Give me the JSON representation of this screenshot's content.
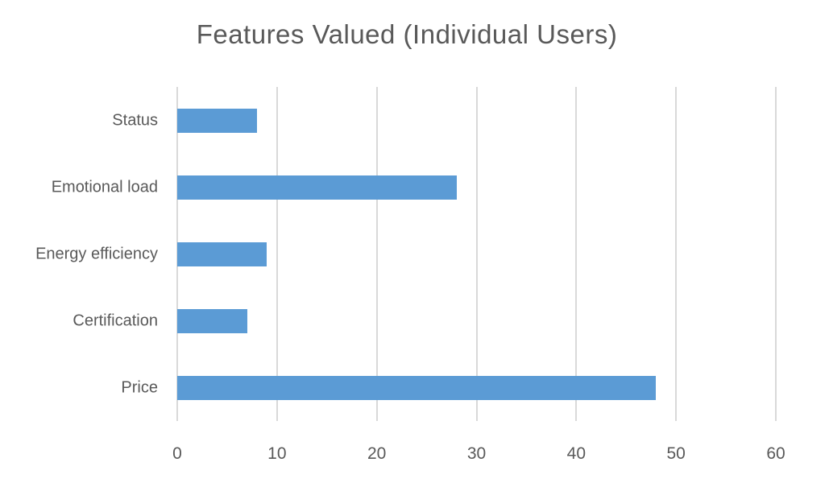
{
  "page": {
    "background": "#FFFFFF"
  },
  "chart_data": {
    "type": "bar",
    "orientation": "horizontal",
    "title": "Features Valued (Individual Users)",
    "categories": [
      "Status",
      "Emotional load",
      "Energy efficiency",
      "Certification",
      "Price"
    ],
    "values": [
      8,
      28,
      9,
      7,
      48
    ],
    "xlabel": "",
    "ylabel": "",
    "xlim": [
      0,
      60
    ],
    "xticks": [
      0,
      10,
      20,
      30,
      40,
      50,
      60
    ],
    "grid": "vertical-gridlines-on",
    "legend": "none",
    "bar_color": "#5B9BD5",
    "gridline_color": "#D9D9D9",
    "text_color": "#595959",
    "background": "#FFFFFF"
  }
}
